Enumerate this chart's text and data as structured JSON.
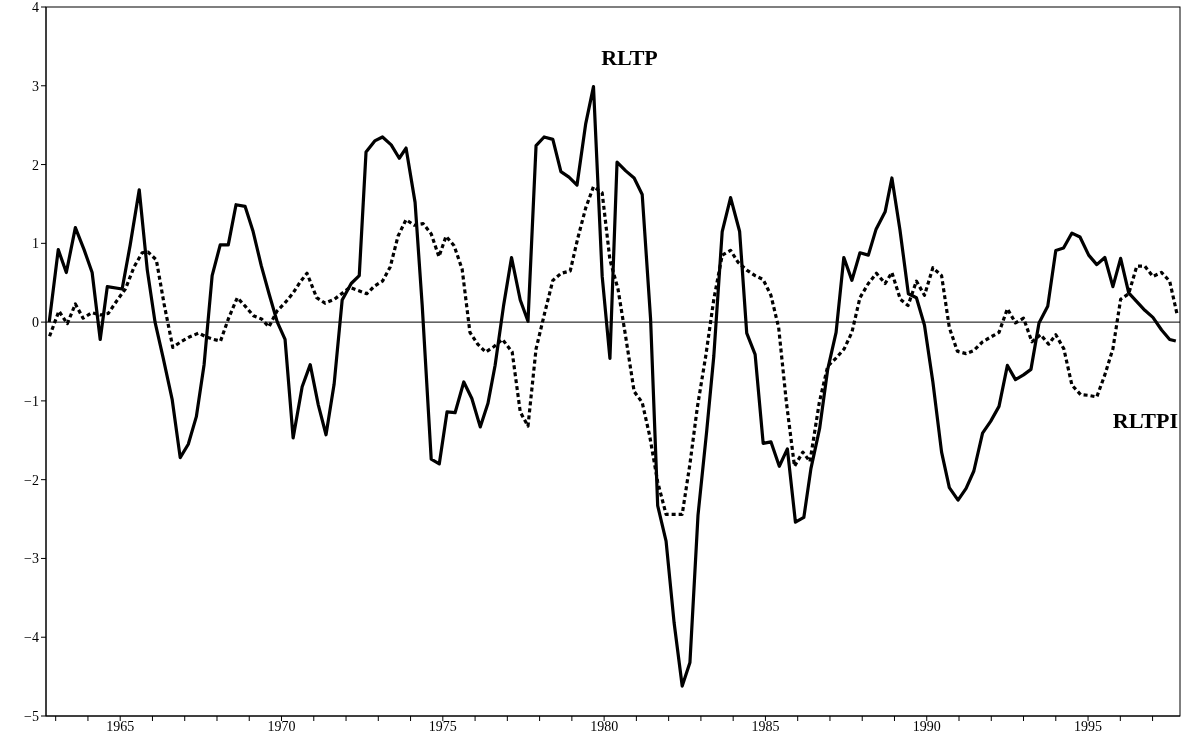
{
  "chart_data": {
    "type": "line",
    "xlim": [
      1962.7,
      1997.85
    ],
    "ylim": [
      -5,
      4
    ],
    "xticks": [
      {
        "value": 1963,
        "label": null
      },
      {
        "value": 1964,
        "label": null
      },
      1965,
      {
        "value": 1966,
        "label": null
      },
      {
        "value": 1967,
        "label": null
      },
      {
        "value": 1968,
        "label": null
      },
      {
        "value": 1969,
        "label": null
      },
      1970,
      {
        "value": 1971,
        "label": null
      },
      {
        "value": 1972,
        "label": null
      },
      {
        "value": 1973,
        "label": null
      },
      {
        "value": 1974,
        "label": null
      },
      1975,
      {
        "value": 1976,
        "label": null
      },
      {
        "value": 1977,
        "label": null
      },
      {
        "value": 1978,
        "label": null
      },
      {
        "value": 1979,
        "label": null
      },
      1980,
      {
        "value": 1981,
        "label": null
      },
      {
        "value": 1982,
        "label": null
      },
      {
        "value": 1983,
        "label": null
      },
      {
        "value": 1984,
        "label": null
      },
      1985,
      {
        "value": 1986,
        "label": null
      },
      {
        "value": 1987,
        "label": null
      },
      {
        "value": 1988,
        "label": null
      },
      {
        "value": 1989,
        "label": null
      },
      1990,
      {
        "value": 1991,
        "label": null
      },
      {
        "value": 1992,
        "label": null
      },
      {
        "value": 1993,
        "label": null
      },
      {
        "value": 1994,
        "label": null
      },
      1995,
      {
        "value": 1996,
        "label": null
      },
      {
        "value": 1997,
        "label": null
      }
    ],
    "yticks": [
      {
        "value": -5,
        "label": "−5"
      },
      {
        "value": -4,
        "label": "−4"
      },
      {
        "value": -3,
        "label": "−3"
      },
      {
        "value": -2,
        "label": "−2"
      },
      {
        "value": -1,
        "label": "−1"
      },
      0,
      1,
      2,
      3,
      4
    ],
    "marker": "none",
    "ref_lines": [
      {
        "axis": "y",
        "value": 0,
        "color": "#000000",
        "line_style": "solid"
      }
    ],
    "series": [
      {
        "name": "RLTP",
        "color": "#000000",
        "line_style": "solid",
        "x": [
          1962.8,
          1963.08,
          1963.33,
          1963.61,
          1963.88,
          1964.13,
          1964.38,
          1964.6,
          1965.06,
          1965.31,
          1965.59,
          1965.84,
          1966.08,
          1966.33,
          1966.61,
          1966.86,
          1967.11,
          1967.36,
          1967.6,
          1967.85,
          1968.1,
          1968.35,
          1968.59,
          1968.87,
          1969.12,
          1969.37,
          1969.62,
          1969.87,
          1970.11,
          1970.36,
          1970.64,
          1970.89,
          1971.14,
          1971.38,
          1971.63,
          1971.88,
          1972.16,
          1972.41,
          1972.62,
          1972.89,
          1973.13,
          1973.4,
          1973.65,
          1973.86,
          1974.14,
          1974.36,
          1974.64,
          1974.89,
          1975.13,
          1975.38,
          1975.65,
          1975.9,
          1976.16,
          1976.4,
          1976.62,
          1976.88,
          1977.13,
          1977.4,
          1977.64,
          1977.89,
          1978.14,
          1978.41,
          1978.66,
          1978.91,
          1979.16,
          1979.43,
          1979.67,
          1979.94,
          1980.18,
          1980.4,
          1980.67,
          1980.93,
          1981.18,
          1981.44,
          1981.66,
          1981.92,
          1982.17,
          1982.42,
          1982.66,
          1982.91,
          1983.18,
          1983.4,
          1983.66,
          1983.92,
          1984.2,
          1984.42,
          1984.68,
          1984.93,
          1985.17,
          1985.43,
          1985.68,
          1985.93,
          1986.19,
          1986.41,
          1986.68,
          1986.93,
          1987.19,
          1987.43,
          1987.68,
          1987.93,
          1988.19,
          1988.43,
          1988.71,
          1988.92,
          1989.17,
          1989.43,
          1989.68,
          1989.93,
          1990.19,
          1990.46,
          1990.7,
          1990.97,
          1991.22,
          1991.46,
          1991.73,
          1991.98,
          1992.24,
          1992.5,
          1992.75,
          1993.0,
          1993.23,
          1993.48,
          1993.75,
          1994.0,
          1994.24,
          1994.5,
          1994.75,
          1995.02,
          1995.27,
          1995.52,
          1995.77,
          1996.01,
          1996.26,
          1996.51,
          1996.76,
          1997.01,
          1997.28,
          1997.53,
          1997.72
        ],
        "values": [
          0.0,
          0.92,
          0.63,
          1.2,
          0.92,
          0.63,
          -0.22,
          0.45,
          0.42,
          0.98,
          1.68,
          0.66,
          0.0,
          -0.45,
          -0.98,
          -1.72,
          -1.55,
          -1.2,
          -0.54,
          0.59,
          0.98,
          0.98,
          1.49,
          1.47,
          1.15,
          0.72,
          0.35,
          0.0,
          -0.22,
          -1.47,
          -0.82,
          -0.54,
          -1.05,
          -1.43,
          -0.79,
          0.28,
          0.49,
          0.59,
          2.16,
          2.3,
          2.35,
          2.25,
          2.08,
          2.21,
          1.52,
          0.22,
          -1.74,
          -1.8,
          -1.14,
          -1.15,
          -0.76,
          -0.97,
          -1.33,
          -1.03,
          -0.55,
          0.2,
          0.82,
          0.28,
          0.01,
          2.24,
          2.35,
          2.32,
          1.91,
          1.84,
          1.74,
          2.52,
          2.99,
          0.58,
          -0.46,
          2.03,
          1.92,
          1.83,
          1.62,
          0.04,
          -2.33,
          -2.78,
          -3.82,
          -4.62,
          -4.32,
          -2.45,
          -1.38,
          -0.43,
          1.15,
          1.58,
          1.15,
          -0.14,
          -0.41,
          -1.54,
          -1.52,
          -1.83,
          -1.61,
          -2.54,
          -2.48,
          -1.86,
          -1.35,
          -0.6,
          -0.13,
          0.82,
          0.53,
          0.88,
          0.85,
          1.18,
          1.4,
          1.83,
          1.17,
          0.36,
          0.31,
          -0.04,
          -0.76,
          -1.65,
          -2.1,
          -2.26,
          -2.11,
          -1.89,
          -1.41,
          -1.26,
          -1.07,
          -0.55,
          -0.73,
          -0.67,
          -0.6,
          -0.01,
          0.2,
          0.91,
          0.94,
          1.13,
          1.08,
          0.85,
          0.73,
          0.82,
          0.45,
          0.81,
          0.37,
          0.26,
          0.15,
          0.06,
          -0.1,
          -0.22,
          -0.24
        ]
      },
      {
        "name": "RLTPI",
        "color": "#000000",
        "line_style": "dotted",
        "x": [
          1962.81,
          1963.1,
          1963.36,
          1963.61,
          1963.85,
          1964.12,
          1964.38,
          1964.63,
          1964.91,
          1965.16,
          1965.43,
          1965.68,
          1965.86,
          1966.12,
          1966.36,
          1966.63,
          1966.88,
          1967.14,
          1967.43,
          1967.68,
          1967.9,
          1968.11,
          1968.36,
          1968.63,
          1968.88,
          1969.13,
          1969.38,
          1969.61,
          1969.86,
          1970.1,
          1970.36,
          1970.58,
          1970.79,
          1971.09,
          1971.35,
          1971.64,
          1972.12,
          1972.64,
          1972.89,
          1973.13,
          1973.37,
          1973.61,
          1973.86,
          1974.11,
          1974.39,
          1974.64,
          1974.88,
          1975.1,
          1975.35,
          1975.6,
          1975.84,
          1976.08,
          1976.33,
          1976.59,
          1976.85,
          1977.15,
          1977.4,
          1977.64,
          1977.89,
          1978.16,
          1978.41,
          1978.67,
          1978.95,
          1979.18,
          1979.43,
          1979.67,
          1979.94,
          1980.18,
          1980.43,
          1980.67,
          1980.93,
          1981.18,
          1981.41,
          1981.66,
          1981.92,
          1982.17,
          1982.42,
          1982.66,
          1982.89,
          1983.15,
          1983.4,
          1983.66,
          1983.92,
          1984.15,
          1984.42,
          1984.68,
          1984.93,
          1985.17,
          1985.41,
          1985.65,
          1985.9,
          1986.16,
          1986.38,
          1986.67,
          1986.93,
          1987.18,
          1987.44,
          1987.68,
          1987.93,
          1988.19,
          1988.44,
          1988.71,
          1988.92,
          1989.18,
          1989.42,
          1989.68,
          1989.93,
          1990.19,
          1990.46,
          1990.7,
          1990.95,
          1991.22,
          1991.46,
          1991.73,
          1991.98,
          1992.24,
          1992.5,
          1992.75,
          1993.0,
          1993.26,
          1993.53,
          1993.78,
          1994.0,
          1994.25,
          1994.5,
          1994.77,
          1995.02,
          1995.27,
          1995.52,
          1995.77,
          1996.01,
          1996.26,
          1996.51,
          1996.76,
          1997.01,
          1997.28,
          1997.53,
          1997.77
        ],
        "values": [
          -0.18,
          0.14,
          -0.02,
          0.23,
          0.05,
          0.12,
          0.09,
          0.11,
          0.28,
          0.42,
          0.7,
          0.88,
          0.89,
          0.79,
          0.23,
          -0.32,
          -0.25,
          -0.19,
          -0.14,
          -0.19,
          -0.22,
          -0.24,
          0.05,
          0.31,
          0.2,
          0.08,
          0.04,
          -0.06,
          0.14,
          0.24,
          0.37,
          0.51,
          0.62,
          0.31,
          0.24,
          0.29,
          0.44,
          0.36,
          0.46,
          0.52,
          0.7,
          1.09,
          1.3,
          1.23,
          1.25,
          1.12,
          0.83,
          1.09,
          0.97,
          0.67,
          -0.13,
          -0.28,
          -0.38,
          -0.31,
          -0.22,
          -0.38,
          -1.14,
          -1.32,
          -0.34,
          0.12,
          0.53,
          0.62,
          0.65,
          1.06,
          1.45,
          1.72,
          1.64,
          0.79,
          0.42,
          -0.19,
          -0.88,
          -1.02,
          -1.44,
          -2.03,
          -2.44,
          -2.44,
          -2.44,
          -1.8,
          -1.08,
          -0.43,
          0.29,
          0.85,
          0.91,
          0.76,
          0.66,
          0.59,
          0.54,
          0.34,
          -0.07,
          -1.02,
          -1.83,
          -1.65,
          -1.77,
          -1.02,
          -0.56,
          -0.46,
          -0.34,
          -0.13,
          0.31,
          0.49,
          0.62,
          0.49,
          0.63,
          0.29,
          0.21,
          0.52,
          0.34,
          0.69,
          0.59,
          -0.07,
          -0.37,
          -0.4,
          -0.36,
          -0.25,
          -0.19,
          -0.13,
          0.17,
          -0.01,
          0.05,
          -0.25,
          -0.16,
          -0.28,
          -0.16,
          -0.34,
          -0.8,
          -0.92,
          -0.93,
          -0.95,
          -0.67,
          -0.34,
          0.29,
          0.36,
          0.71,
          0.71,
          0.58,
          0.63,
          0.52,
          0.08
        ]
      }
    ]
  }
}
